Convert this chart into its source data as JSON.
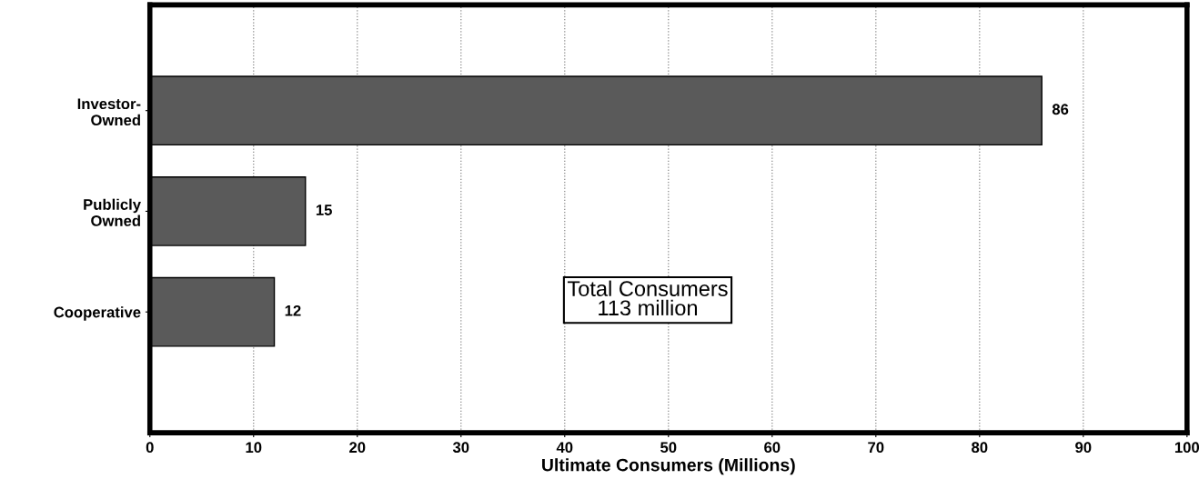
{
  "chart_data": {
    "type": "bar",
    "orientation": "horizontal",
    "categories": [
      "Investor-\nOwned",
      "Publicly\nOwned",
      "Cooperative"
    ],
    "values": [
      86,
      15,
      12
    ],
    "color": "#5a5a5a",
    "xlabel": "Ultimate Consumers (Millions)",
    "xlim": [
      0,
      100
    ],
    "xticks": [
      0,
      10,
      20,
      30,
      40,
      50,
      60,
      70,
      80,
      90,
      100
    ],
    "grid": "x",
    "data_labels": true,
    "annotations": [
      "Total Consumers\n113 million"
    ]
  }
}
